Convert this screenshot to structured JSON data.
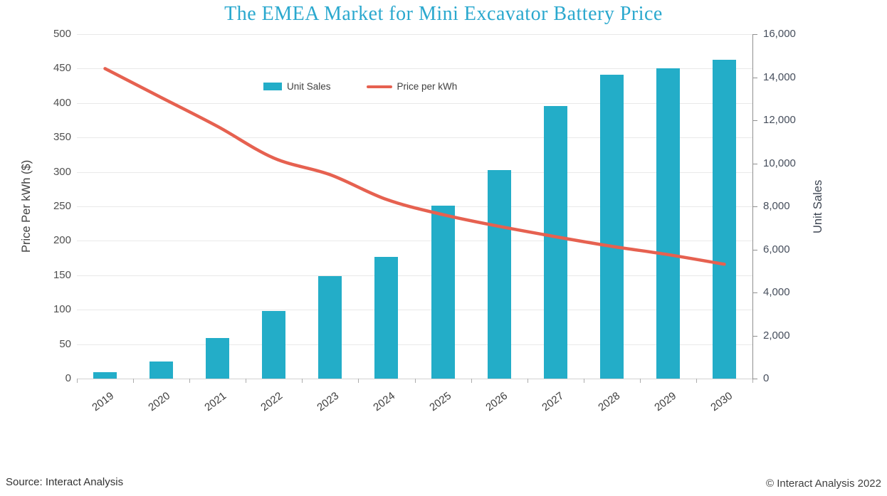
{
  "title": "The EMEA Market for Mini Excavator Battery Price",
  "legend": {
    "unit_sales": "Unit Sales",
    "price_per_kwh": "Price per kWh"
  },
  "footer": {
    "source": "Source: Interact Analysis",
    "copyright": "© Interact Analysis 2022"
  },
  "colors": {
    "bar": "#23ADC8",
    "line": "#E66150",
    "title": "#2AA8CE",
    "gridline": "#E9E9E9",
    "x_axis_line": "#D2D2D2",
    "right_axis_line": "#8F8F8F",
    "tick_mark": "#ADADAD"
  },
  "chart_data": {
    "type": "bar",
    "subtype": "bar-and-line-combo",
    "title": "The EMEA Market for Mini Excavator Battery Price",
    "categories": [
      "2019",
      "2020",
      "2021",
      "2022",
      "2023",
      "2024",
      "2025",
      "2026",
      "2027",
      "2028",
      "2029",
      "2030"
    ],
    "series": [
      {
        "name": "Unit Sales",
        "type": "bar",
        "axis": "right",
        "values": [
          300,
          800,
          1900,
          3150,
          4750,
          5650,
          8050,
          9700,
          12650,
          14100,
          14400,
          14800
        ]
      },
      {
        "name": "Price per kWh",
        "type": "line",
        "axis": "left",
        "values": [
          450,
          408,
          366,
          320,
          296,
          260,
          238,
          221,
          206,
          192,
          180,
          166
        ]
      }
    ],
    "left_axis": {
      "label": "Price Per kWh ($)",
      "min": 0,
      "max": 500,
      "step": 50,
      "tick_labels": [
        "0",
        "50",
        "100",
        "150",
        "200",
        "250",
        "300",
        "350",
        "400",
        "450",
        "500"
      ]
    },
    "right_axis": {
      "label": "Unit Sales",
      "min": 0,
      "max": 16000,
      "step": 2000,
      "tick_labels": [
        "0",
        "2,000",
        "4,000",
        "6,000",
        "8,000",
        "10,000",
        "12,000",
        "14,000",
        "16,000"
      ]
    },
    "grid": true,
    "legend_position": "top-center"
  }
}
